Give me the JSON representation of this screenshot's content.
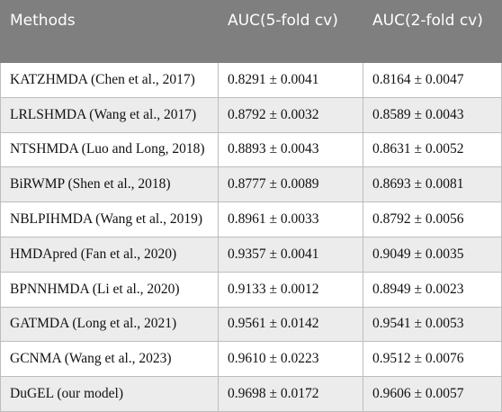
{
  "table": {
    "headers": [
      "Methods",
      "AUC(5-fold cv)",
      "AUC(2-fold cv)"
    ],
    "rows": [
      [
        "KATZHMDA (Chen et al., 2017)",
        "0.8291 ± 0.0041",
        "0.8164 ± 0.0047"
      ],
      [
        "LRLSHMDA (Wang et al., 2017)",
        "0.8792 ± 0.0032",
        "0.8589 ± 0.0043"
      ],
      [
        "NTSHMDA (Luo and Long, 2018)",
        "0.8893 ± 0.0043",
        "0.8631 ± 0.0052"
      ],
      [
        "BiRWMP (Shen et al., 2018)",
        "0.8777 ± 0.0089",
        "0.8693 ± 0.0081"
      ],
      [
        "NBLPIHMDA (Wang et al., 2019)",
        "0.8961 ± 0.0033",
        "0.8792 ± 0.0056"
      ],
      [
        "HMDApred (Fan et al., 2020)",
        "0.9357 ± 0.0041",
        "0.9049 ± 0.0035"
      ],
      [
        "BPNNHMDA (Li et al., 2020)",
        "0.9133 ± 0.0012",
        "0.8949 ± 0.0023"
      ],
      [
        "GATMDA (Long et al., 2021)",
        "0.9561 ± 0.0142",
        "0.9541 ± 0.0053"
      ],
      [
        "GCNMA (Wang et al., 2023)",
        "0.9610 ± 0.0223",
        "0.9512 ± 0.0076"
      ],
      [
        "DuGEL (our model)",
        "0.9698 ± 0.0172",
        "0.9606 ± 0.0057"
      ]
    ]
  },
  "colors": {
    "header_bg": "#7f7f7f",
    "header_text": "#ffffff",
    "alt_row_bg": "#ececec",
    "border": "#bdbdbd"
  }
}
